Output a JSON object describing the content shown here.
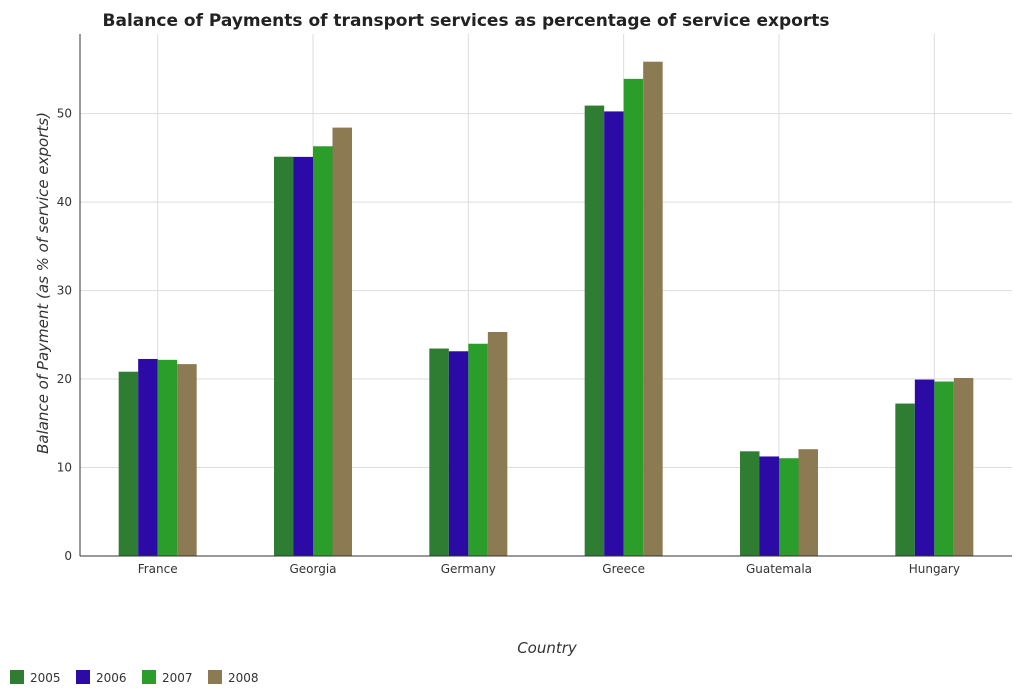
{
  "chart_data": {
    "type": "bar",
    "title": "Balance of Payments of transport services as percentage of service exports",
    "xlabel": "Country",
    "ylabel": "Balance of Payment (as % of service exports)",
    "categories": [
      "France",
      "Georgia",
      "Germany",
      "Greece",
      "Guatemala",
      "Hungary"
    ],
    "series": [
      {
        "name": "2005",
        "color": "#2e7d32",
        "values": [
          20.83,
          45.13,
          23.45,
          50.91,
          11.83,
          17.23
        ]
      },
      {
        "name": "2006",
        "color": "#2b0aa6",
        "values": [
          22.27,
          45.11,
          23.14,
          50.25,
          11.25,
          19.94
        ]
      },
      {
        "name": "2007",
        "color": "#2a9d2a",
        "values": [
          22.17,
          46.31,
          23.99,
          53.93,
          11.05,
          19.72
        ]
      },
      {
        "name": "2008",
        "color": "#8b7a52",
        "values": [
          21.69,
          48.42,
          25.32,
          55.87,
          12.07,
          20.12
        ]
      }
    ],
    "ylim": [
      0,
      59
    ],
    "yticks": [
      0,
      10,
      20,
      30,
      40,
      50
    ],
    "grid": true,
    "legend_position": "bottom-left"
  }
}
